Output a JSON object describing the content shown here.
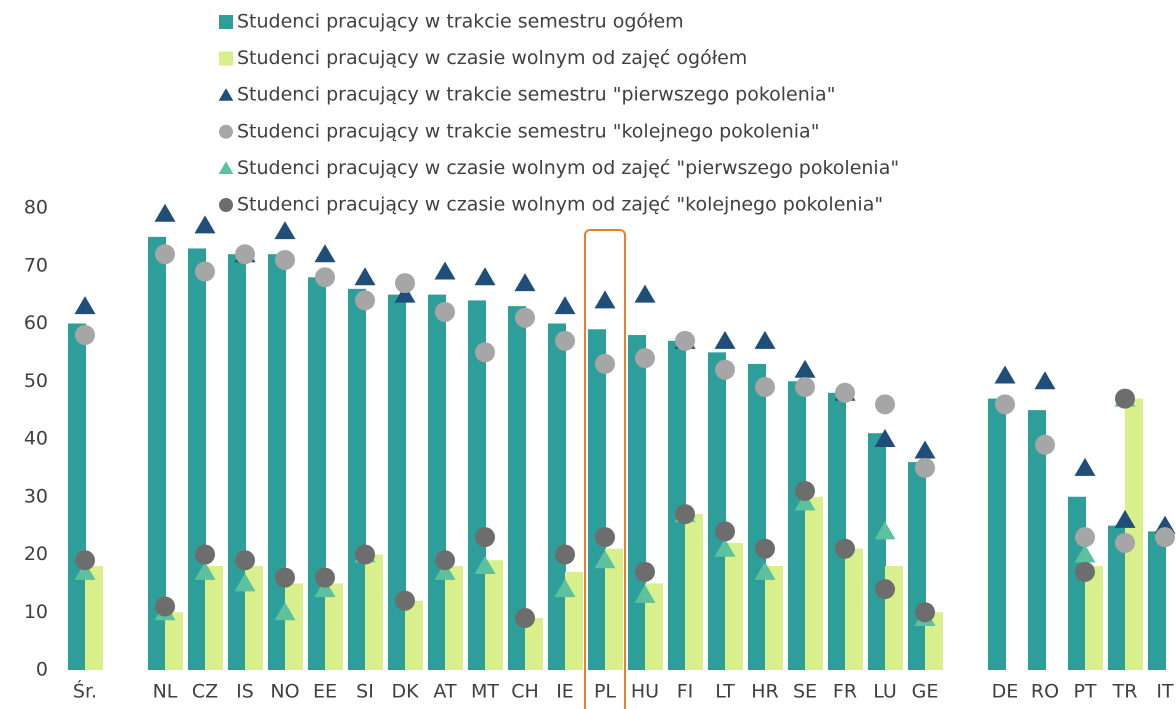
{
  "chart_data": {
    "type": "bar",
    "categories": [
      "Śr.",
      null,
      "NL",
      "CZ",
      "IS",
      "NO",
      "EE",
      "SI",
      "DK",
      "AT",
      "MT",
      "CH",
      "IE",
      "PL",
      "HU",
      "FI",
      "LT",
      "HR",
      "SE",
      "FR",
      "LU",
      "GE",
      null,
      "DE",
      "RO",
      "PT",
      "TR",
      "IT"
    ],
    "series": [
      {
        "name": "Studenci pracujący w trakcie semestru ogółem",
        "type": "bar",
        "color": "#2e9e9a",
        "values": [
          60,
          null,
          75,
          73,
          72,
          72,
          68,
          66,
          65,
          65,
          64,
          63,
          60,
          59,
          58,
          57,
          55,
          53,
          50,
          48,
          41,
          36,
          null,
          47,
          45,
          30,
          25,
          24
        ]
      },
      {
        "name": "Studenci pracujący w czasie wolnym od zajęć ogółem",
        "type": "bar",
        "color": "#d9ef8b",
        "values": [
          18,
          null,
          10,
          18,
          18,
          15,
          15,
          20,
          12,
          18,
          19,
          9,
          17,
          21,
          15,
          27,
          22,
          18,
          30,
          21,
          18,
          10,
          null,
          null,
          null,
          18,
          47,
          null
        ]
      },
      {
        "name": "Studenci pracujący w trakcie semestru \"pierwszego pokolenia\"",
        "type": "marker",
        "marker": "triangle",
        "color": "#1f4e79",
        "values": [
          63,
          null,
          79,
          77,
          72,
          76,
          72,
          68,
          65,
          69,
          68,
          67,
          63,
          64,
          65,
          57,
          57,
          57,
          52,
          48,
          40,
          38,
          null,
          51,
          50,
          35,
          26,
          25
        ]
      },
      {
        "name": "Studenci pracujący w trakcie semestru \"kolejnego pokolenia\"",
        "type": "marker",
        "marker": "circle",
        "color": "#a6a6a6",
        "values": [
          58,
          null,
          72,
          69,
          72,
          71,
          68,
          64,
          67,
          62,
          55,
          61,
          57,
          53,
          54,
          57,
          52,
          49,
          49,
          48,
          46,
          35,
          null,
          46,
          39,
          23,
          22,
          23
        ]
      },
      {
        "name": "Studenci pracujący w czasie wolnym od zajęć \"pierwszego pokolenia\"",
        "type": "marker",
        "marker": "triangle",
        "color": "#5cc19c",
        "values": [
          17,
          null,
          10,
          17,
          15,
          10,
          14,
          20,
          null,
          17,
          18,
          null,
          14,
          19,
          13,
          27,
          21,
          17,
          29,
          null,
          24,
          9,
          null,
          null,
          null,
          20,
          47,
          null
        ]
      },
      {
        "name": "Studenci pracujący w czasie wolnym od zajęć \"kolejnego pokolenia\"",
        "type": "marker",
        "marker": "circle",
        "color": "#6d6d6d",
        "values": [
          19,
          null,
          11,
          20,
          19,
          16,
          16,
          20,
          12,
          19,
          23,
          9,
          20,
          23,
          17,
          27,
          24,
          21,
          31,
          21,
          14,
          10,
          null,
          null,
          null,
          17,
          47,
          null
        ]
      }
    ],
    "ylim": [
      0,
      80
    ],
    "yticks": [
      0,
      10,
      20,
      30,
      40,
      50,
      60,
      70,
      80
    ],
    "grid": false,
    "highlight": "PL"
  }
}
